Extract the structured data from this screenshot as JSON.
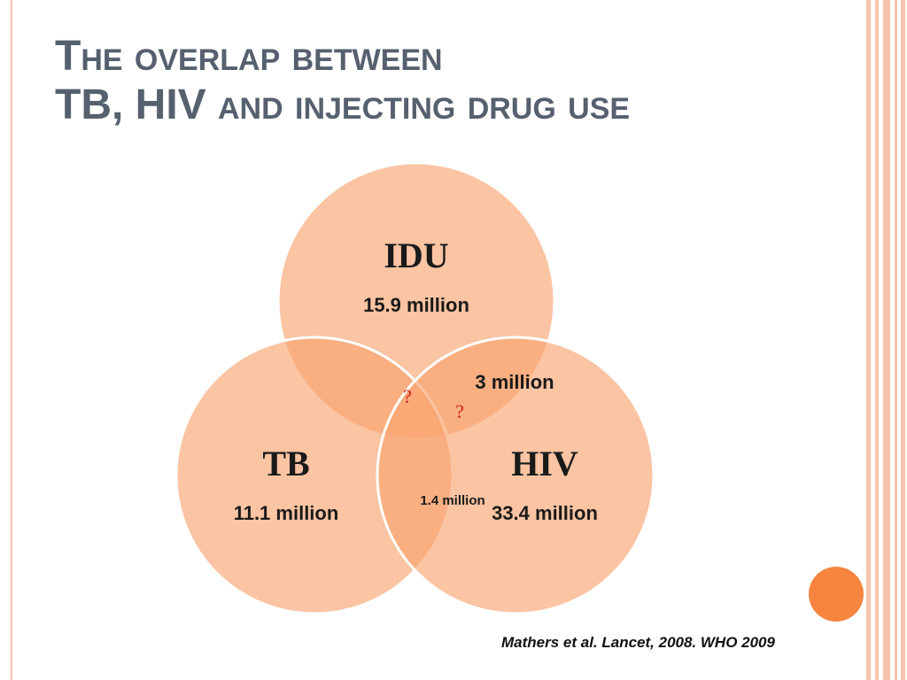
{
  "title": {
    "line1_cap": "T",
    "line1_rest": "he overlap between",
    "line2_acronyms": "TB, HIV",
    "line2_rest": " and injecting drug use"
  },
  "venn": {
    "idu": {
      "name": "IDU",
      "value": "15.9 million"
    },
    "tb": {
      "name": "TB",
      "value": "11.1 million"
    },
    "hiv": {
      "name": "HIV",
      "value": "33.4 million"
    },
    "overlap_idu_hiv": "3 million",
    "overlap_tb_hiv": "1.4 million",
    "overlap_unknown_1": "?",
    "overlap_unknown_2": "?"
  },
  "colors": {
    "circle_fill": "#f9a470",
    "circle_stroke": "#ffffff",
    "accent_dot": "#f7853f",
    "question_mark": "#d21e1e",
    "frame": "#f7c4ad"
  },
  "citation": "Mathers et al. Lancet, 2008. WHO 2009"
}
